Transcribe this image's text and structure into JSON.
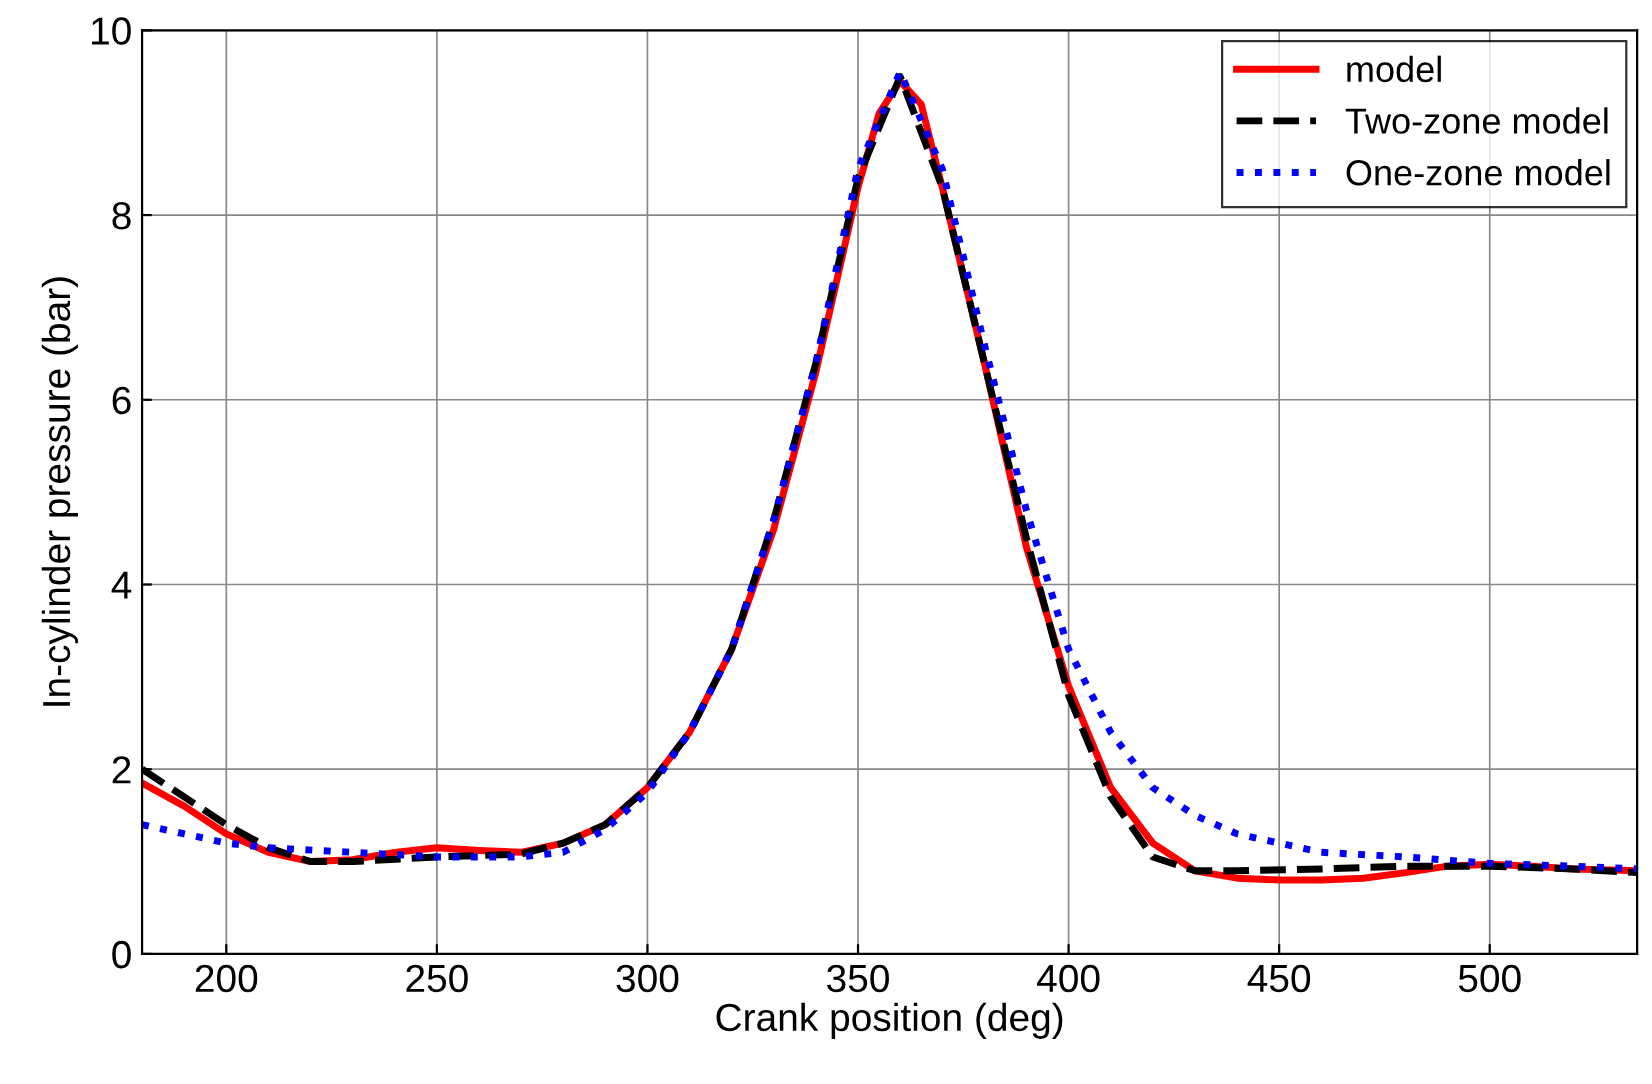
{
  "chart_data": {
    "type": "line",
    "xlabel": "Crank position (deg)",
    "ylabel": "In-cylinder pressure (bar)",
    "xlim": [
      180,
      535
    ],
    "xticks": [
      200,
      250,
      300,
      350,
      400,
      450,
      500
    ],
    "ylim": [
      0,
      10
    ],
    "yticks": [
      0,
      2,
      4,
      6,
      8,
      10
    ],
    "grid": true,
    "legend": "top right",
    "marker": "none",
    "series": [
      {
        "name": "model",
        "color": "#ff0000",
        "line_style": "solid",
        "x": [
          180,
          190,
          200,
          210,
          220,
          230,
          240,
          250,
          260,
          270,
          280,
          290,
          300,
          310,
          320,
          330,
          340,
          350,
          355,
          360,
          365,
          370,
          380,
          390,
          400,
          410,
          420,
          430,
          440,
          450,
          460,
          470,
          480,
          490,
          500,
          510,
          520,
          535
        ],
        "values": [
          1.85,
          1.6,
          1.3,
          1.1,
          1.0,
          1.02,
          1.1,
          1.15,
          1.12,
          1.1,
          1.2,
          1.4,
          1.8,
          2.4,
          3.3,
          4.6,
          6.3,
          8.3,
          9.1,
          9.45,
          9.2,
          8.3,
          6.4,
          4.4,
          2.9,
          1.8,
          1.2,
          0.9,
          0.82,
          0.8,
          0.8,
          0.82,
          0.88,
          0.95,
          0.97,
          0.95,
          0.92,
          0.9
        ]
      },
      {
        "name": "Two-zone model",
        "color": "#000000",
        "line_style": "dashed",
        "x": [
          180,
          190,
          200,
          210,
          220,
          230,
          250,
          270,
          280,
          290,
          300,
          310,
          320,
          330,
          340,
          350,
          360,
          370,
          380,
          390,
          400,
          410,
          420,
          430,
          440,
          460,
          480,
          500,
          520,
          535
        ],
        "values": [
          2.0,
          1.7,
          1.4,
          1.15,
          1.0,
          1.0,
          1.05,
          1.08,
          1.2,
          1.4,
          1.8,
          2.4,
          3.3,
          4.7,
          6.4,
          8.4,
          9.5,
          8.3,
          6.4,
          4.5,
          2.8,
          1.7,
          1.05,
          0.9,
          0.9,
          0.92,
          0.95,
          0.95,
          0.92,
          0.88
        ]
      },
      {
        "name": "One-zone model",
        "color": "#0000ff",
        "line_style": "dotted",
        "x": [
          180,
          190,
          200,
          210,
          230,
          250,
          270,
          280,
          290,
          300,
          310,
          320,
          330,
          340,
          350,
          360,
          370,
          380,
          390,
          400,
          410,
          420,
          430,
          440,
          450,
          460,
          480,
          500,
          520,
          535
        ],
        "values": [
          1.4,
          1.3,
          1.2,
          1.15,
          1.1,
          1.05,
          1.05,
          1.1,
          1.35,
          1.75,
          2.4,
          3.3,
          4.7,
          6.4,
          8.5,
          9.55,
          8.5,
          6.6,
          4.8,
          3.3,
          2.4,
          1.8,
          1.5,
          1.3,
          1.2,
          1.1,
          1.05,
          0.98,
          0.95,
          0.92
        ]
      }
    ]
  }
}
